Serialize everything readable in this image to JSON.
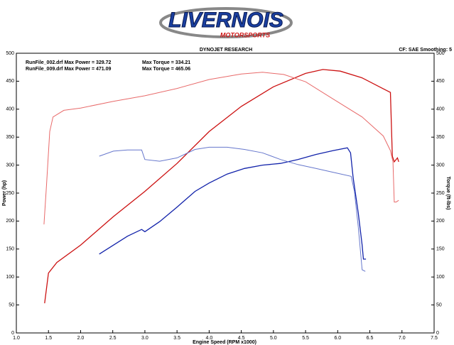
{
  "chart_data": {
    "type": "line",
    "logo": {
      "name": "LIVERNOIS",
      "tagline": "MOTORSPORTS"
    },
    "title": "DYNOJET RESEARCH",
    "settings_label": "CF: SAE  Smoothing: 5",
    "annotations": [
      "RunFile_002.drf Max Power = 329.72",
      "Max Torque = 334.21",
      "RunFile_009.drf Max Power = 471.09",
      "Max Torque = 465.06"
    ],
    "x_label": "Engine Speed (RPM x1000)",
    "y_label": "Power (hp)",
    "y2_label": "Torque (ft-lbs)",
    "xlim": [
      1,
      7.5
    ],
    "xticks": [
      {
        "value": 1,
        "label": "1.0"
      },
      {
        "value": 1.5,
        "label": "1.5"
      },
      {
        "value": 2,
        "label": "2.0"
      },
      {
        "value": 2.5,
        "label": "2.5"
      },
      {
        "value": 3,
        "label": "3.0"
      },
      {
        "value": 3.5,
        "label": "3.5"
      },
      {
        "value": 4,
        "label": "4.0"
      },
      {
        "value": 4.5,
        "label": "4.5"
      },
      {
        "value": 5,
        "label": "5.0"
      },
      {
        "value": 5.5,
        "label": "5.5"
      },
      {
        "value": 6,
        "label": "6.0"
      },
      {
        "value": 6.5,
        "label": "6.5"
      },
      {
        "value": 7,
        "label": "7.0"
      },
      {
        "value": 7.5,
        "label": "7.5"
      }
    ],
    "ylim": [
      0,
      500
    ],
    "yticks": [
      0,
      50,
      100,
      150,
      200,
      250,
      300,
      350,
      400,
      450,
      500
    ],
    "y2lim": [
      0,
      500
    ],
    "y2ticks": [
      0,
      50,
      100,
      150,
      200,
      250,
      300,
      350,
      400,
      450,
      500
    ],
    "series": [
      {
        "color": "#cc1111",
        "axis": "y",
        "x": [
          1.44,
          1.5,
          1.63,
          2.0,
          2.51,
          3.0,
          3.5,
          4.0,
          4.5,
          5.0,
          5.5,
          5.77,
          6.04,
          6.38,
          6.65,
          6.82,
          6.85,
          6.88,
          6.93,
          6.95
        ],
        "values": [
          53,
          107,
          126,
          157,
          208,
          253,
          303,
          360,
          405,
          440,
          464,
          471,
          468,
          456,
          440,
          430,
          316,
          306,
          313,
          306
        ]
      },
      {
        "color": "#e86a6a",
        "axis": "y2",
        "x": [
          1.43,
          1.47,
          1.52,
          1.57,
          1.74,
          2.0,
          2.51,
          3.0,
          3.5,
          4.0,
          4.5,
          4.83,
          5.16,
          5.5,
          5.93,
          6.38,
          6.71,
          6.82,
          6.86,
          6.88,
          6.91,
          6.95
        ],
        "values": [
          194,
          265,
          360,
          386,
          398,
          402,
          414,
          424,
          437,
          453,
          463,
          466,
          462,
          449,
          418,
          386,
          352,
          326,
          306,
          234,
          234,
          237
        ]
      },
      {
        "color": "#1122aa",
        "axis": "y",
        "x": [
          2.29,
          2.51,
          2.73,
          2.95,
          3.0,
          3.23,
          3.5,
          3.78,
          4.0,
          4.28,
          4.55,
          4.83,
          5.11,
          5.38,
          5.66,
          5.93,
          6.15,
          6.2,
          6.24,
          6.32,
          6.38,
          6.4,
          6.44
        ],
        "values": [
          141,
          157,
          173,
          185,
          181,
          199,
          225,
          253,
          268,
          284,
          294,
          300,
          303,
          310,
          319,
          326,
          331,
          322,
          278,
          214,
          157,
          132,
          132
        ]
      },
      {
        "color": "#6677cc",
        "axis": "y2",
        "x": [
          2.29,
          2.51,
          2.73,
          2.95,
          3.0,
          3.23,
          3.5,
          3.78,
          4.0,
          4.28,
          4.55,
          4.83,
          5.11,
          5.38,
          5.66,
          5.93,
          6.21,
          6.26,
          6.32,
          6.38,
          6.43
        ],
        "values": [
          316,
          325,
          327,
          327,
          310,
          307,
          313,
          328,
          332,
          332,
          328,
          322,
          310,
          301,
          294,
          287,
          280,
          253,
          189,
          113,
          110
        ]
      }
    ]
  }
}
